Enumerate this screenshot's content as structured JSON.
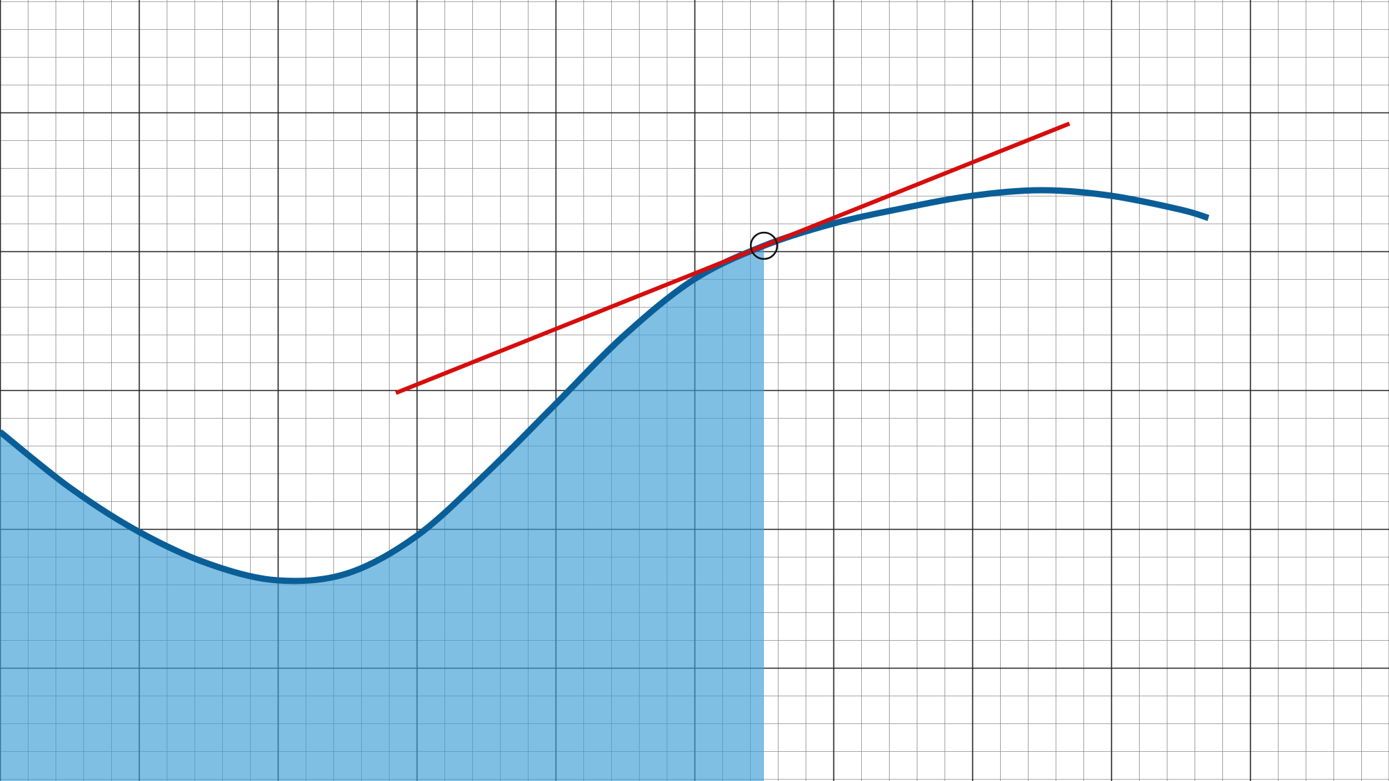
{
  "grid": {
    "major_color": "#222222",
    "minor_color": "#8c8c8c",
    "minor_divisions": 5
  },
  "curve": {
    "color": "#0a5e97",
    "points": [
      [
        0.0,
        -1.3
      ],
      [
        0.5,
        -1.7
      ],
      [
        1.0,
        -2.02
      ],
      [
        1.5,
        -2.25
      ],
      [
        2.0,
        -2.37
      ],
      [
        2.5,
        -2.32
      ],
      [
        3.0,
        -2.05
      ],
      [
        3.5,
        -1.6
      ],
      [
        4.0,
        -1.1
      ],
      [
        4.5,
        -0.6
      ],
      [
        5.0,
        -0.2
      ],
      [
        5.5,
        0.04
      ],
      [
        6.0,
        0.2
      ],
      [
        6.5,
        0.31
      ],
      [
        7.0,
        0.4
      ],
      [
        7.5,
        0.44
      ],
      [
        8.0,
        0.4
      ],
      [
        8.5,
        0.3
      ],
      [
        8.7,
        0.24
      ]
    ]
  },
  "area": {
    "fill_color": "#3d9ed4",
    "x_from": 0.0,
    "x_to": 5.5
  },
  "tangent": {
    "color": "#d60d0d",
    "point": [
      5.5,
      0.04
    ],
    "x_from": 2.85,
    "x_to": 7.7
  },
  "marker": {
    "color": "#111111",
    "point": [
      5.5,
      0.04
    ]
  }
}
